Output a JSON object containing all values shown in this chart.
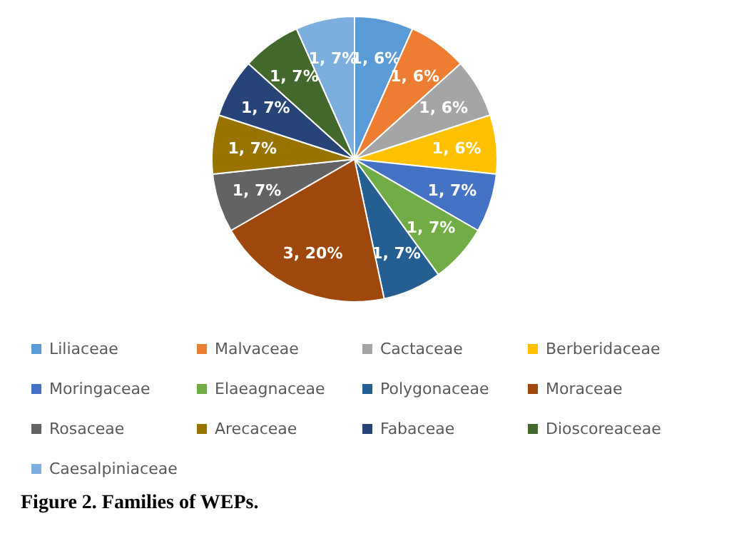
{
  "chart_data": {
    "type": "pie",
    "categories": [
      "Liliaceae",
      "Malvaceae",
      "Cactaceae",
      "Berberidaceae",
      "Moringaceae",
      "Elaeagnaceae",
      "Polygonaceae",
      "Moraceae",
      "Rosaceae",
      "Arecaceae",
      "Fabaceae",
      "Dioscoreaceae",
      "Caesalpiniaceae"
    ],
    "values": [
      1,
      1,
      1,
      1,
      1,
      1,
      1,
      3,
      1,
      1,
      1,
      1,
      1
    ],
    "value_labels": [
      "1, 6%",
      "1, 6%",
      "1, 6%",
      "1, 6%",
      "1, 7%",
      "1, 7%",
      "1, 7%",
      "3, 20%",
      "1, 7%",
      "1, 7%",
      "1, 7%",
      "1, 7%",
      "1, 7%"
    ],
    "colors": [
      "#5b9bd5",
      "#ed7d31",
      "#a5a5a5",
      "#ffc000",
      "#4472c4",
      "#70ad47",
      "#255e91",
      "#9e480e",
      "#636363",
      "#997300",
      "#264478",
      "#43682b",
      "#7cafdd"
    ],
    "legend": "bottom",
    "annotations": [
      "Figure 2. Families of WEPs."
    ]
  }
}
